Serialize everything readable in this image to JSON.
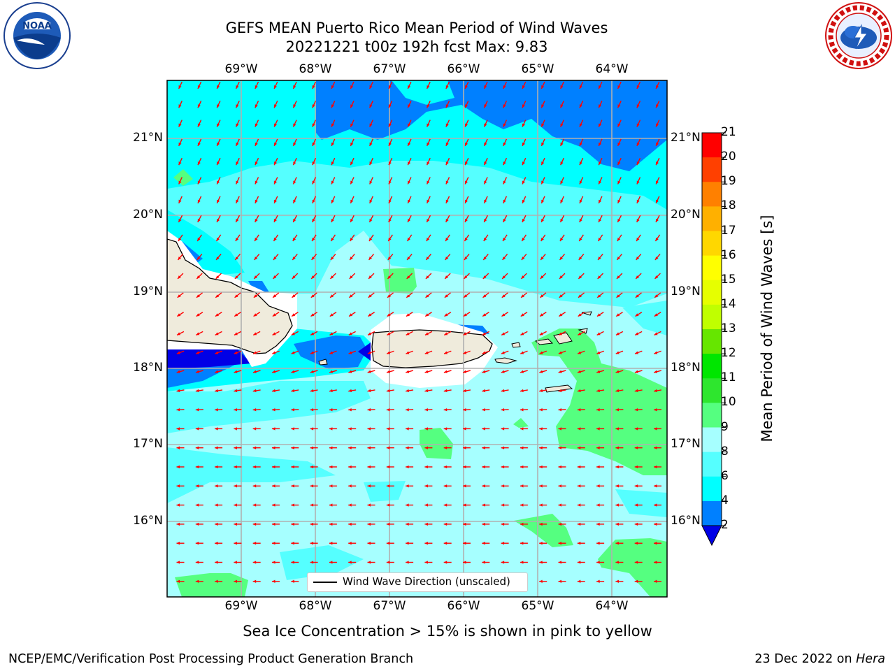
{
  "header": {
    "title_line1": "GEFS MEAN Puerto Rico Mean Period of Wind Waves",
    "title_line2": "20221221 t00z 192h fcst   Max: 9.83"
  },
  "map": {
    "lon_labels": [
      "69°W",
      "68°W",
      "67°W",
      "66°W",
      "65°W",
      "64°W"
    ],
    "lat_labels": [
      "21°N",
      "20°N",
      "19°N",
      "18°N",
      "17°N",
      "16°N"
    ],
    "legend_label": "Wind Wave Direction (unscaled)",
    "ocean_color": "#a6ffff",
    "land_color": "#efebdc",
    "arrow_color": "#ff0000",
    "arrow_direction": "toward west-southwest"
  },
  "colorbar": {
    "title": "Mean Period of Wind Waves [s]",
    "ticks": [
      "2",
      "4",
      "6",
      "8",
      "9",
      "10",
      "11",
      "12",
      "13",
      "14",
      "15",
      "16",
      "17",
      "18",
      "19",
      "20",
      "21"
    ],
    "colors": [
      "#0000e6",
      "#0080ff",
      "#00ffff",
      "#55ffff",
      "#a6ffff",
      "#55ff80",
      "#2ee62e",
      "#00e600",
      "#66e600",
      "#c0ff00",
      "#e6ff00",
      "#ffff00",
      "#ffd700",
      "#ffb000",
      "#ff8000",
      "#ff4000",
      "#ff0000"
    ]
  },
  "subtitle": "Sea Ice Concentration > 15% is shown in pink to yellow",
  "footer": {
    "left": "NCEP/EMC/Verification Post Processing Product Generation Branch",
    "right_prefix": "23 Dec 2022 on ",
    "right_machine": "Hera"
  },
  "logos": {
    "left": "noaa-logo",
    "right": "national-weather-service-logo"
  }
}
